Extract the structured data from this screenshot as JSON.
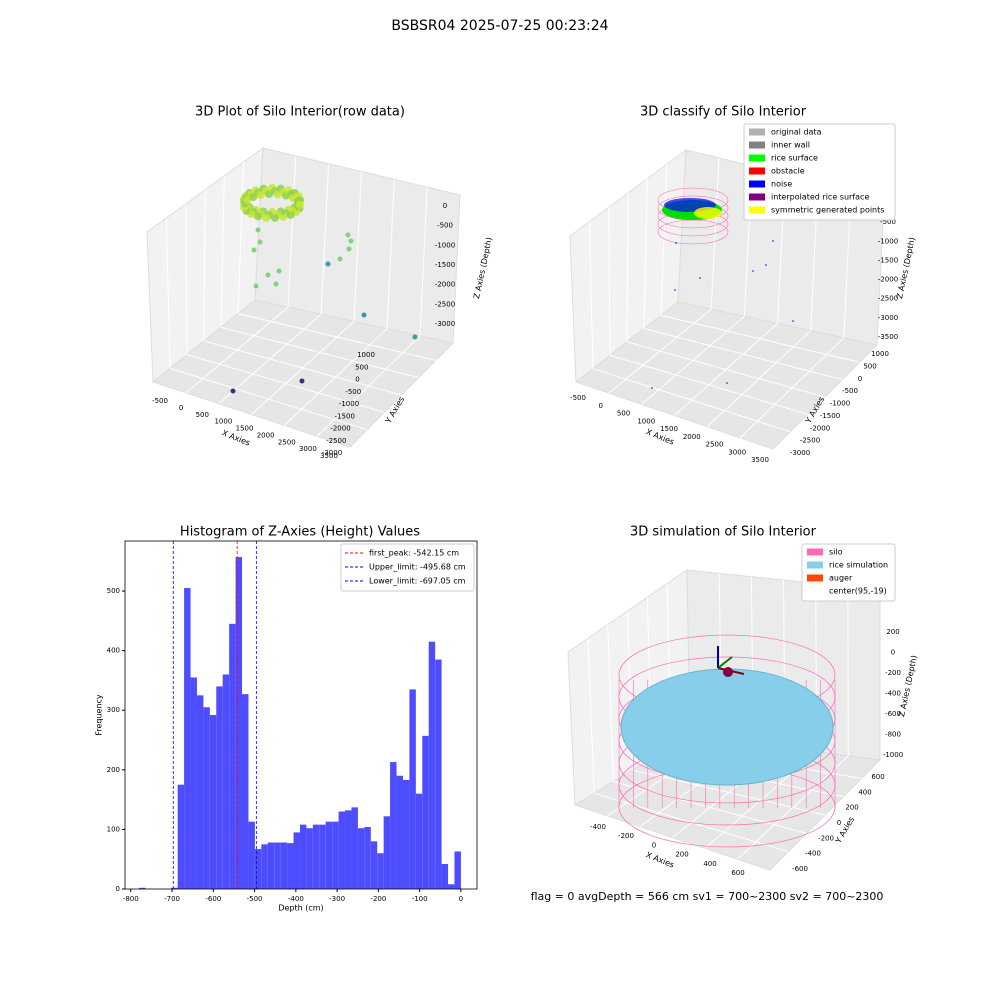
{
  "title": "BSBSR04 2025-07-25 00:23:24",
  "footer": "flag = 0     avgDepth = 566 cm  sv1 = 700~2300  sv2 = 700~2300",
  "chart_data": [
    {
      "type": "scatter3d",
      "title": "3D Plot of Silo Interior(row data)",
      "xlabel": "X Axies",
      "ylabel": "Y Axies",
      "zlabel": "Z Axies (Depth)",
      "xticks": [
        -500,
        0,
        500,
        1000,
        1500,
        2000,
        2500,
        3000,
        3500
      ],
      "yticks": [
        1000,
        500,
        0,
        -500,
        -1000,
        -1500,
        -2000,
        -2500,
        -3000
      ],
      "zticks": [
        0,
        -500,
        -1000,
        -1500,
        -2000,
        -2500,
        -3000
      ]
    },
    {
      "type": "scatter3d",
      "title": "3D classify of Silo Interior",
      "xlabel": "X Axies",
      "ylabel": "Y Axies",
      "zlabel": "Z Axies (Depth)",
      "xticks": [
        -500,
        0,
        500,
        1000,
        1500,
        2000,
        2500,
        3000,
        3500
      ],
      "yticks": [
        1000,
        500,
        0,
        -500,
        -1000,
        -1500,
        -2000,
        -2500,
        -3000
      ],
      "zticks": [
        0,
        -500,
        -1000,
        -1500,
        -2000,
        -2500,
        -3000,
        -3500
      ],
      "legend": [
        {
          "name": "original data",
          "color": "#b0b0b0"
        },
        {
          "name": "inner wall",
          "color": "#808080"
        },
        {
          "name": "rice surface",
          "color": "#00ff00"
        },
        {
          "name": "obstacle",
          "color": "#ff0000"
        },
        {
          "name": "noise",
          "color": "#0000ff"
        },
        {
          "name": "interpolated rice surface",
          "color": "#800080"
        },
        {
          "name": "symmetric generated points",
          "color": "#ffff00"
        }
      ]
    },
    {
      "type": "histogram",
      "title": "Histogram of Z-Axies (Height) Values",
      "xlabel": "Depth (cm)",
      "ylabel": "Frequency",
      "color": "#4d4dff",
      "bins": [
        -780,
        -764.4,
        -748.8,
        -733.2,
        -717.6,
        -702,
        -686.4,
        -670.8,
        -655.2,
        -639.6,
        -624,
        -608.4,
        -592.8,
        -577.2,
        -561.6,
        -546,
        -530.4,
        -514.8,
        -499.2,
        -483.6,
        -468,
        -452.4,
        -436.8,
        -421.2,
        -405.6,
        -390,
        -374.4,
        -358.8,
        -343.2,
        -327.6,
        -312,
        -296.4,
        -280.8,
        -265.2,
        -249.6,
        -234,
        -218.4,
        -202.8,
        -187.2,
        -171.6,
        -156,
        -140.4,
        -124.8,
        -109.2,
        -93.6,
        -78,
        -62.4,
        -46.8,
        -31.2,
        -15.6,
        0
      ],
      "values": [
        2,
        0,
        0,
        0,
        0,
        2,
        175,
        505,
        355,
        325,
        305,
        292,
        340,
        360,
        445,
        557,
        327,
        113,
        67,
        75,
        78,
        78,
        78,
        77,
        95,
        108,
        102,
        108,
        108,
        113,
        113,
        130,
        132,
        137,
        102,
        104,
        80,
        60,
        122,
        213,
        190,
        183,
        335,
        160,
        257,
        415,
        385,
        42,
        8,
        63
      ],
      "xlim": [
        -814,
        39
      ],
      "ylim": [
        0,
        584
      ],
      "xticks": [
        -800,
        -700,
        -600,
        -500,
        -400,
        -300,
        -200,
        -100,
        0
      ],
      "yticks": [
        0,
        100,
        200,
        300,
        400,
        500
      ],
      "lines": [
        {
          "name": "first_peak: -542.15 cm",
          "value": -542.15,
          "color": "#ff0000"
        },
        {
          "name": "Upper_limit: -495.68 cm",
          "value": -495.68,
          "color": "#0000ff"
        },
        {
          "name": "Lower_limit: -697.05 cm",
          "value": -697.05,
          "color": "#0000ff"
        }
      ]
    },
    {
      "type": "surface3d",
      "title": "3D simulation of Silo Interior",
      "xlabel": "X Axies",
      "ylabel": "Y Axies",
      "zlabel": "Z Axies (Depth)",
      "xticks": [
        -400,
        -200,
        0,
        200,
        400,
        600
      ],
      "yticks": [
        600,
        400,
        200,
        0,
        -200,
        -400,
        -600
      ],
      "zticks": [
        200,
        0,
        -200,
        -400,
        -600,
        -800,
        -1000
      ],
      "legend": [
        {
          "name": "silo",
          "color": "#ff69b4"
        },
        {
          "name": "rice simulation",
          "color": "#87ceeb"
        },
        {
          "name": "auger",
          "color": "#ff4500"
        },
        {
          "name": "center(95,-19)",
          "color": "#ffffff"
        }
      ]
    }
  ]
}
